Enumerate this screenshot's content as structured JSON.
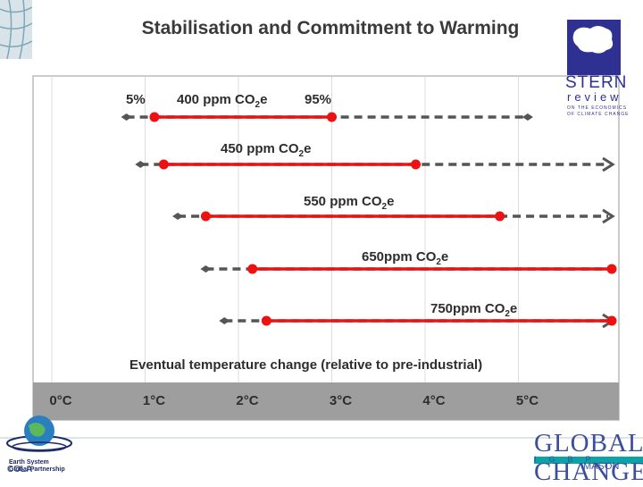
{
  "title": "Stabilisation and Commitment to Warming",
  "chart_data": {
    "type": "range",
    "title": "Stabilisation and Commitment to Warming",
    "xlabel": "Eventual temperature change (relative to pre-industrial)",
    "xlim": [
      0,
      6
    ],
    "ticks": [
      "0°C",
      "1°C",
      "2°C",
      "3°C",
      "4°C",
      "5°C"
    ],
    "percentile_labels": {
      "low": "5%",
      "high": "95%"
    },
    "series": [
      {
        "name": "400 ppm CO2e",
        "label_main": "400 ppm CO",
        "label_sub": "2",
        "label_tail": "e",
        "dash_start": 0.8,
        "likely_low": 1.1,
        "likely_high": 3.0,
        "dash_end": 5.1,
        "open_ended": false
      },
      {
        "name": "450 ppm CO2e",
        "label_main": "450 ppm CO",
        "label_sub": "2",
        "label_tail": "e",
        "dash_start": 0.95,
        "likely_low": 1.2,
        "likely_high": 3.9,
        "dash_end": 6.0,
        "open_ended": true
      },
      {
        "name": "550 ppm CO2e",
        "label_main": "550 ppm CO",
        "label_sub": "2",
        "label_tail": "e",
        "dash_start": 1.35,
        "likely_low": 1.65,
        "likely_high": 4.8,
        "dash_end": 6.0,
        "open_ended": true
      },
      {
        "name": "650ppm CO2e",
        "label_main": "650ppm CO",
        "label_sub": "2",
        "label_tail": "e",
        "dash_start": 1.65,
        "likely_low": 2.15,
        "likely_high": 6.0,
        "dash_end": 6.0,
        "open_ended": false
      },
      {
        "name": "750ppm CO2e",
        "label_main": "750ppm CO",
        "label_sub": "2",
        "label_tail": "e",
        "dash_start": 1.85,
        "likely_low": 2.3,
        "likely_high": 6.0,
        "dash_end": 6.0,
        "open_ended": true
      }
    ]
  },
  "logos": {
    "stern": {
      "word": "STERN",
      "review": "review",
      "sub1": "ON THE ECONOMICS",
      "sub2": "OF CLIMATE CHANGE"
    },
    "cola": {
      "line1": "Earth System",
      "line2": "Global Partnership",
      "name": "COLA"
    },
    "global_change": {
      "top": "GLOBAL",
      "band": "IGBP",
      "bottom": "CHANGE",
      "mason": "MASON"
    }
  },
  "colors": {
    "likely": "#ee1111",
    "dashed": "#555555",
    "axis_band": "#9e9e9e",
    "frame": "#bbbbbb",
    "accent": "#2e3192"
  }
}
